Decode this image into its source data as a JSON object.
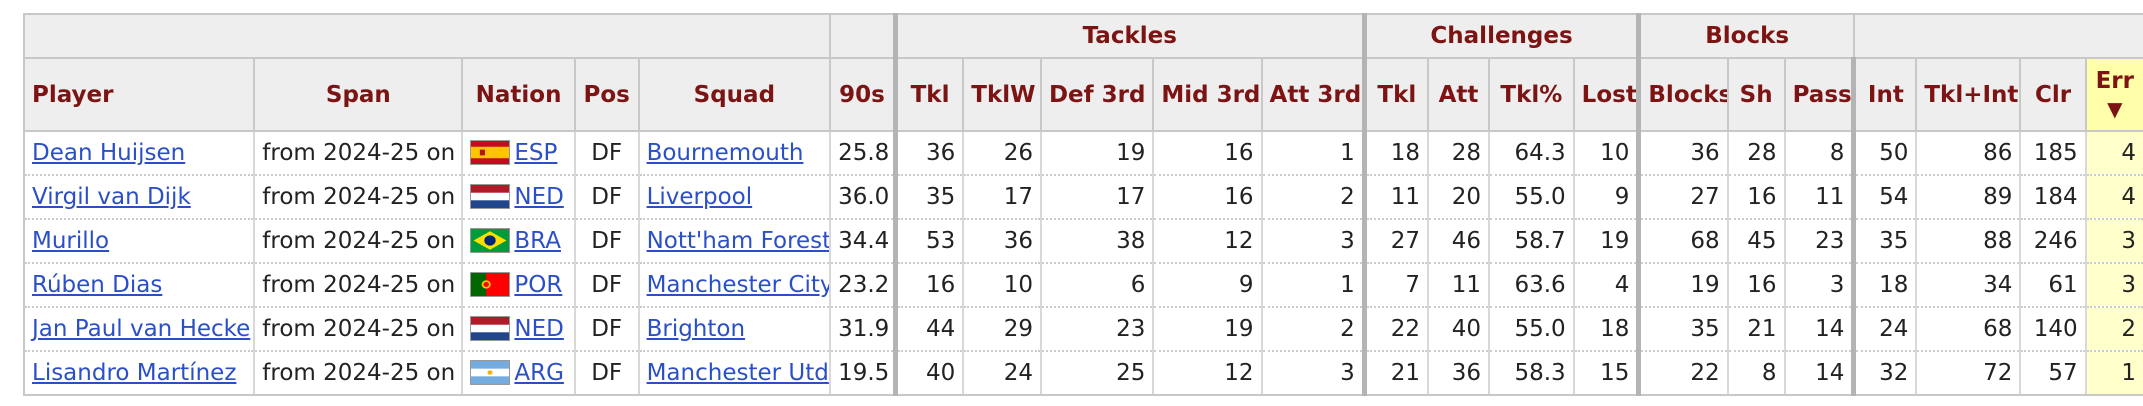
{
  "table": {
    "group_headers": {
      "tackles": "Tackles",
      "challenges": "Challenges",
      "blocks": "Blocks"
    },
    "columns": {
      "player": "Player",
      "span": "Span",
      "nation": "Nation",
      "pos": "Pos",
      "squad": "Squad",
      "nineties": "90s",
      "tkl": "Tkl",
      "tklw": "TklW",
      "def3rd": "Def 3rd",
      "mid3rd": "Mid 3rd",
      "att3rd": "Att 3rd",
      "ch_tkl": "Tkl",
      "ch_att": "Att",
      "ch_pct": "Tkl%",
      "ch_lost": "Lost",
      "blocks": "Blocks",
      "sh": "Sh",
      "pass": "Pass",
      "int": "Int",
      "tkl_int": "Tkl+Int",
      "clr": "Clr",
      "err": "Err",
      "sort_arrow": "▼"
    },
    "rows": [
      {
        "player": "Dean Huijsen",
        "span": "from 2024-25 on",
        "nation": "ESP",
        "flag": "flag-spain-icon",
        "pos": "DF",
        "squad": "Bournemouth",
        "nineties": "25.8",
        "tkl": "36",
        "tklw": "26",
        "def3rd": "19",
        "mid3rd": "16",
        "att3rd": "1",
        "ch_tkl": "18",
        "ch_att": "28",
        "ch_pct": "64.3",
        "ch_lost": "10",
        "blocks": "36",
        "sh": "28",
        "pass": "8",
        "int": "50",
        "tkl_int": "86",
        "clr": "185",
        "err": "4"
      },
      {
        "player": "Virgil van Dijk",
        "span": "from 2024-25 on",
        "nation": "NED",
        "flag": "flag-netherlands-icon",
        "pos": "DF",
        "squad": "Liverpool",
        "nineties": "36.0",
        "tkl": "35",
        "tklw": "17",
        "def3rd": "17",
        "mid3rd": "16",
        "att3rd": "2",
        "ch_tkl": "11",
        "ch_att": "20",
        "ch_pct": "55.0",
        "ch_lost": "9",
        "blocks": "27",
        "sh": "16",
        "pass": "11",
        "int": "54",
        "tkl_int": "89",
        "clr": "184",
        "err": "4"
      },
      {
        "player": "Murillo",
        "span": "from 2024-25 on",
        "nation": "BRA",
        "flag": "flag-brazil-icon",
        "pos": "DF",
        "squad": "Nott'ham Forest",
        "nineties": "34.4",
        "tkl": "53",
        "tklw": "36",
        "def3rd": "38",
        "mid3rd": "12",
        "att3rd": "3",
        "ch_tkl": "27",
        "ch_att": "46",
        "ch_pct": "58.7",
        "ch_lost": "19",
        "blocks": "68",
        "sh": "45",
        "pass": "23",
        "int": "35",
        "tkl_int": "88",
        "clr": "246",
        "err": "3"
      },
      {
        "player": "Rúben Dias",
        "span": "from 2024-25 on",
        "nation": "POR",
        "flag": "flag-portugal-icon",
        "pos": "DF",
        "squad": "Manchester City",
        "nineties": "23.2",
        "tkl": "16",
        "tklw": "10",
        "def3rd": "6",
        "mid3rd": "9",
        "att3rd": "1",
        "ch_tkl": "7",
        "ch_att": "11",
        "ch_pct": "63.6",
        "ch_lost": "4",
        "blocks": "19",
        "sh": "16",
        "pass": "3",
        "int": "18",
        "tkl_int": "34",
        "clr": "61",
        "err": "3"
      },
      {
        "player": "Jan Paul van Hecke",
        "span": "from 2024-25 on",
        "nation": "NED",
        "flag": "flag-netherlands-icon",
        "pos": "DF",
        "squad": "Brighton",
        "nineties": "31.9",
        "tkl": "44",
        "tklw": "29",
        "def3rd": "23",
        "mid3rd": "19",
        "att3rd": "2",
        "ch_tkl": "22",
        "ch_att": "40",
        "ch_pct": "55.0",
        "ch_lost": "18",
        "blocks": "35",
        "sh": "21",
        "pass": "14",
        "int": "24",
        "tkl_int": "68",
        "clr": "140",
        "err": "2"
      },
      {
        "player": "Lisandro Martínez",
        "span": "from 2024-25 on",
        "nation": "ARG",
        "flag": "flag-argentina-icon",
        "pos": "DF",
        "squad": "Manchester Utd",
        "nineties": "19.5",
        "tkl": "40",
        "tklw": "24",
        "def3rd": "25",
        "mid3rd": "12",
        "att3rd": "3",
        "ch_tkl": "21",
        "ch_att": "36",
        "ch_pct": "58.3",
        "ch_lost": "15",
        "blocks": "22",
        "sh": "8",
        "pass": "14",
        "int": "32",
        "tkl_int": "72",
        "clr": "57",
        "err": "1"
      }
    ]
  }
}
